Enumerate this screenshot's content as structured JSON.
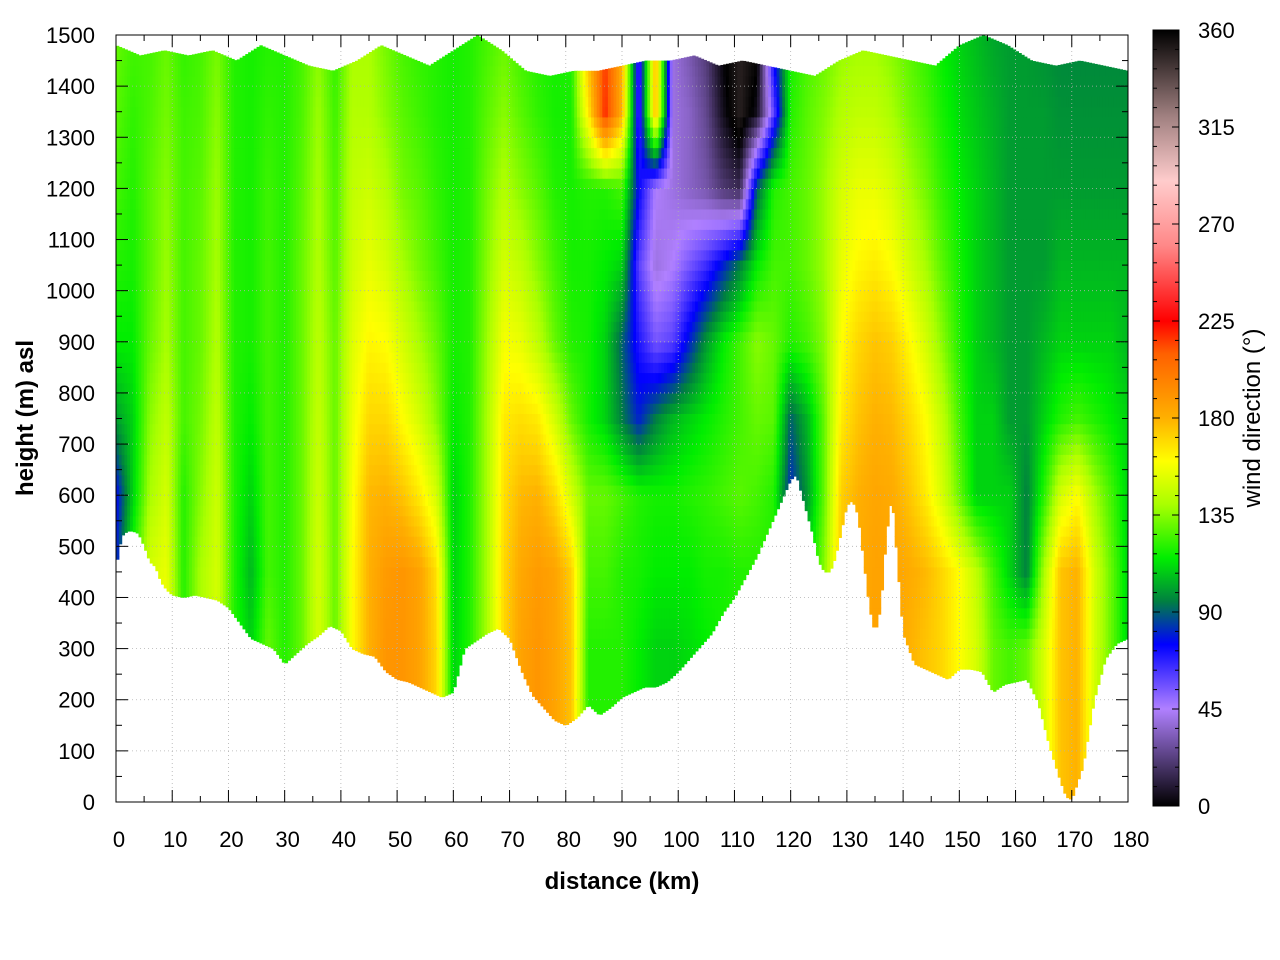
{
  "chart_data": {
    "type": "heatmap",
    "title": "",
    "xlabel": "distance (km)",
    "ylabel": "height (m) asl",
    "colorbar_label": "wind direction (°)",
    "xlim": [
      0,
      180
    ],
    "ylim": [
      0,
      1500
    ],
    "clim": [
      0,
      360
    ],
    "grid": true,
    "x_ticks": [
      0,
      10,
      20,
      30,
      40,
      50,
      60,
      70,
      80,
      90,
      100,
      110,
      120,
      130,
      140,
      150,
      160,
      170,
      180
    ],
    "y_ticks": [
      0,
      100,
      200,
      300,
      400,
      500,
      600,
      700,
      800,
      900,
      1000,
      1100,
      1200,
      1300,
      1400,
      1500
    ],
    "colorbar_ticks": [
      0,
      45,
      90,
      135,
      180,
      225,
      270,
      315,
      360
    ],
    "colormap_stops": [
      {
        "value": 0,
        "color": "#000000"
      },
      {
        "value": 45,
        "color": "#b080ff"
      },
      {
        "value": 75,
        "color": "#0000ff"
      },
      {
        "value": 95,
        "color": "#008040"
      },
      {
        "value": 115,
        "color": "#00ee00"
      },
      {
        "value": 140,
        "color": "#aaff00"
      },
      {
        "value": 160,
        "color": "#ffff00"
      },
      {
        "value": 180,
        "color": "#ffb000"
      },
      {
        "value": 210,
        "color": "#ff6000"
      },
      {
        "value": 225,
        "color": "#ff0000"
      },
      {
        "value": 260,
        "color": "#ff8888"
      },
      {
        "value": 290,
        "color": "#ffcccc"
      },
      {
        "value": 320,
        "color": "#a08080"
      },
      {
        "value": 360,
        "color": "#000000"
      }
    ],
    "terrain_profile": {
      "x": [
        0,
        1,
        2,
        3,
        4,
        5,
        6,
        7,
        8,
        9,
        10,
        12,
        14,
        16,
        18,
        20,
        22,
        24,
        26,
        28,
        30,
        32,
        34,
        36,
        38,
        40,
        42,
        44,
        46,
        48,
        50,
        52,
        54,
        56,
        58,
        60,
        62,
        64,
        66,
        68,
        70,
        72,
        74,
        76,
        78,
        80,
        82,
        84,
        86,
        88,
        90,
        92,
        94,
        96,
        98,
        100,
        102,
        104,
        106,
        108,
        110,
        112,
        114,
        116,
        118,
        120,
        121,
        122,
        123,
        124,
        125,
        126,
        127,
        128,
        129,
        130,
        131,
        132,
        133,
        134,
        135,
        136,
        137,
        138,
        140,
        142,
        144,
        146,
        148,
        150,
        152,
        154,
        156,
        158,
        160,
        162,
        164,
        166,
        168,
        169,
        170,
        172,
        174,
        176,
        178,
        180
      ],
      "height_m": [
        460,
        520,
        530,
        530,
        525,
        500,
        470,
        460,
        430,
        415,
        405,
        400,
        405,
        400,
        395,
        380,
        350,
        320,
        310,
        300,
        270,
        290,
        310,
        325,
        345,
        335,
        300,
        290,
        285,
        255,
        240,
        235,
        225,
        215,
        205,
        215,
        300,
        315,
        330,
        340,
        320,
        260,
        210,
        185,
        160,
        150,
        165,
        190,
        170,
        185,
        205,
        215,
        225,
        225,
        235,
        255,
        280,
        305,
        330,
        370,
        400,
        440,
        480,
        530,
        580,
        630,
        640,
        600,
        560,
        520,
        470,
        450,
        450,
        480,
        530,
        580,
        590,
        560,
        470,
        380,
        330,
        380,
        520,
        600,
        330,
        270,
        260,
        250,
        240,
        260,
        260,
        255,
        215,
        230,
        235,
        240,
        195,
        110,
        40,
        10,
        5,
        70,
        200,
        280,
        310,
        320
      ]
    },
    "column_top_height_m": [
      1480,
      1460,
      1470,
      1460,
      1470,
      1450,
      1480,
      1460,
      1440,
      1430,
      1450,
      1480,
      1460,
      1440,
      1470,
      1500,
      1470,
      1430,
      1420,
      1430,
      1430,
      1440,
      1450,
      1450,
      1460,
      1440,
      1450,
      1440,
      1430,
      1420,
      1450,
      1470,
      1460,
      1450,
      1440,
      1480,
      1500,
      1480,
      1450,
      1440,
      1450,
      1440,
      1430
    ],
    "fields_x_km": [
      0,
      3,
      6,
      9,
      12,
      15,
      18,
      21,
      24,
      27,
      30,
      33,
      36,
      39,
      42,
      45,
      48,
      51,
      54,
      57,
      60,
      63,
      66,
      69,
      72,
      75,
      78,
      81,
      84,
      87,
      90,
      93,
      96,
      99,
      102,
      105,
      108,
      111,
      114,
      117,
      120,
      123,
      126,
      129,
      132,
      135,
      138,
      141,
      144,
      147,
      150,
      153,
      156,
      159,
      162,
      165,
      168,
      171,
      174,
      177,
      180
    ],
    "fields_height_m": [
      0,
      150,
      300,
      450,
      600,
      750,
      900,
      1050,
      1200,
      1350,
      1500
    ],
    "wind_direction_deg": [
      [
        125,
        150,
        165,
        160,
        120,
        140,
        150,
        120,
        110,
        130,
        120,
        130,
        150,
        130,
        160,
        180,
        190,
        190,
        185,
        170,
        110,
        120,
        140,
        170,
        185,
        190,
        185,
        175,
        120,
        120,
        120,
        115,
        110,
        110,
        112,
        115,
        118,
        120,
        120,
        120,
        120,
        140,
        160,
        175,
        182,
        185,
        185,
        180,
        175,
        170,
        160,
        150,
        130,
        125,
        130,
        150,
        175,
        180,
        150,
        130,
        110
      ],
      [
        125,
        150,
        165,
        160,
        120,
        140,
        150,
        120,
        110,
        130,
        120,
        130,
        150,
        130,
        160,
        180,
        190,
        190,
        185,
        170,
        110,
        120,
        140,
        170,
        185,
        190,
        185,
        175,
        120,
        120,
        120,
        115,
        110,
        110,
        112,
        115,
        118,
        120,
        120,
        120,
        120,
        140,
        160,
        175,
        182,
        185,
        185,
        180,
        175,
        170,
        160,
        150,
        130,
        125,
        130,
        150,
        175,
        180,
        150,
        130,
        110
      ],
      [
        125,
        150,
        165,
        160,
        120,
        140,
        150,
        120,
        110,
        130,
        120,
        130,
        150,
        130,
        160,
        180,
        190,
        190,
        185,
        170,
        110,
        120,
        140,
        170,
        185,
        190,
        185,
        175,
        120,
        120,
        120,
        115,
        110,
        110,
        112,
        115,
        118,
        120,
        120,
        120,
        120,
        140,
        160,
        175,
        182,
        185,
        185,
        180,
        175,
        170,
        160,
        150,
        130,
        125,
        130,
        150,
        175,
        180,
        150,
        130,
        110
      ],
      [
        80,
        120,
        150,
        155,
        120,
        140,
        150,
        120,
        105,
        125,
        120,
        130,
        150,
        130,
        160,
        180,
        188,
        190,
        185,
        168,
        110,
        120,
        140,
        170,
        183,
        188,
        185,
        172,
        125,
        125,
        120,
        118,
        115,
        115,
        115,
        118,
        118,
        120,
        120,
        120,
        110,
        110,
        135,
        175,
        182,
        185,
        185,
        182,
        178,
        170,
        160,
        145,
        125,
        110,
        95,
        140,
        175,
        180,
        150,
        130,
        110
      ],
      [
        75,
        110,
        140,
        150,
        120,
        135,
        148,
        120,
        110,
        125,
        120,
        130,
        148,
        130,
        158,
        178,
        180,
        175,
        165,
        150,
        110,
        120,
        140,
        168,
        178,
        180,
        170,
        150,
        130,
        130,
        125,
        120,
        118,
        118,
        120,
        122,
        125,
        128,
        125,
        120,
        80,
        100,
        130,
        172,
        180,
        184,
        182,
        175,
        165,
        150,
        130,
        110,
        110,
        110,
        95,
        120,
        150,
        160,
        140,
        125,
        110
      ],
      [
        100,
        110,
        135,
        145,
        125,
        132,
        145,
        120,
        115,
        125,
        120,
        130,
        146,
        130,
        155,
        170,
        170,
        160,
        150,
        135,
        115,
        120,
        140,
        165,
        168,
        165,
        150,
        130,
        118,
        110,
        95,
        80,
        95,
        105,
        110,
        115,
        120,
        125,
        130,
        128,
        90,
        105,
        130,
        165,
        175,
        180,
        178,
        170,
        160,
        145,
        125,
        110,
        110,
        100,
        100,
        110,
        120,
        125,
        120,
        115,
        110
      ],
      [
        115,
        115,
        130,
        140,
        125,
        130,
        142,
        120,
        118,
        125,
        120,
        130,
        144,
        130,
        152,
        162,
        160,
        150,
        140,
        130,
        118,
        120,
        138,
        158,
        155,
        145,
        130,
        120,
        118,
        110,
        90,
        70,
        55,
        60,
        80,
        100,
        115,
        125,
        135,
        130,
        120,
        125,
        135,
        160,
        170,
        175,
        172,
        162,
        150,
        135,
        120,
        110,
        105,
        100,
        100,
        105,
        110,
        110,
        110,
        110,
        105
      ],
      [
        120,
        118,
        128,
        138,
        125,
        130,
        140,
        120,
        118,
        125,
        120,
        130,
        142,
        128,
        148,
        155,
        150,
        140,
        132,
        125,
        118,
        120,
        135,
        150,
        145,
        135,
        125,
        118,
        118,
        115,
        110,
        60,
        40,
        45,
        55,
        65,
        80,
        95,
        115,
        125,
        125,
        130,
        138,
        155,
        162,
        165,
        160,
        150,
        140,
        128,
        118,
        110,
        105,
        100,
        100,
        100,
        105,
        105,
        105,
        105,
        105
      ],
      [
        125,
        120,
        128,
        135,
        125,
        128,
        138,
        120,
        118,
        124,
        120,
        128,
        140,
        126,
        145,
        148,
        142,
        132,
        128,
        122,
        118,
        120,
        132,
        142,
        135,
        128,
        120,
        118,
        120,
        120,
        125,
        75,
        45,
        40,
        35,
        30,
        20,
        15,
        90,
        120,
        125,
        130,
        138,
        150,
        155,
        155,
        150,
        140,
        132,
        122,
        115,
        110,
        105,
        100,
        100,
        100,
        100,
        100,
        100,
        100,
        100
      ],
      [
        128,
        122,
        126,
        132,
        124,
        126,
        135,
        120,
        118,
        122,
        120,
        126,
        138,
        124,
        142,
        142,
        135,
        128,
        124,
        120,
        118,
        120,
        128,
        135,
        128,
        122,
        118,
        118,
        165,
        220,
        180,
        60,
        180,
        40,
        35,
        25,
        5,
        350,
        5,
        60,
        120,
        128,
        134,
        142,
        145,
        145,
        140,
        132,
        126,
        118,
        112,
        108,
        104,
        100,
        100,
        100,
        98,
        98,
        98,
        98,
        98
      ],
      [
        130,
        125,
        125,
        130,
        122,
        125,
        132,
        120,
        118,
        120,
        120,
        125,
        135,
        122,
        140,
        140,
        132,
        125,
        122,
        120,
        118,
        120,
        125,
        130,
        124,
        120,
        118,
        120,
        180,
        215,
        180,
        60,
        180,
        40,
        30,
        20,
        0,
        350,
        355,
        80,
        118,
        125,
        130,
        136,
        138,
        138,
        134,
        128,
        122,
        115,
        110,
        106,
        102,
        100,
        100,
        98,
        96,
        96,
        96,
        96,
        96
      ]
    ]
  }
}
